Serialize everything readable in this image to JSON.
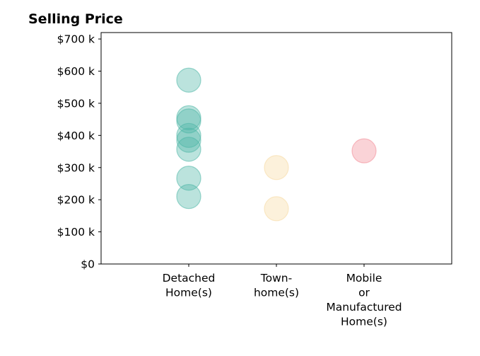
{
  "chart_data": {
    "type": "scatter",
    "title": "Selling Price",
    "xlabel": "",
    "ylabel": "",
    "categories": [
      [
        "Detached",
        "Home(s)"
      ],
      [
        "Town-",
        "home(s)"
      ],
      [
        "Mobile",
        "or",
        "Manufactured",
        "Home(s)"
      ]
    ],
    "y_ticks": [
      {
        "value": 0,
        "label": "$0"
      },
      {
        "value": 100000,
        "label": "$100 k"
      },
      {
        "value": 200000,
        "label": "$200 k"
      },
      {
        "value": 300000,
        "label": "$300 k"
      },
      {
        "value": 400000,
        "label": "$400 k"
      },
      {
        "value": 500000,
        "label": "$500 k"
      },
      {
        "value": 600000,
        "label": "$600 k"
      },
      {
        "value": 700000,
        "label": "$700 k"
      }
    ],
    "ylim": [
      0,
      720000
    ],
    "grid": false,
    "series": [
      {
        "category": 0,
        "color": "#4db6a6",
        "values": [
          572000,
          455000,
          445000,
          400000,
          385000,
          357000,
          267000,
          210000
        ]
      },
      {
        "category": 1,
        "color": "#f6d9a0",
        "values": [
          300000,
          172000
        ]
      },
      {
        "category": 2,
        "color": "#f28b96",
        "values": [
          352000
        ]
      }
    ]
  }
}
